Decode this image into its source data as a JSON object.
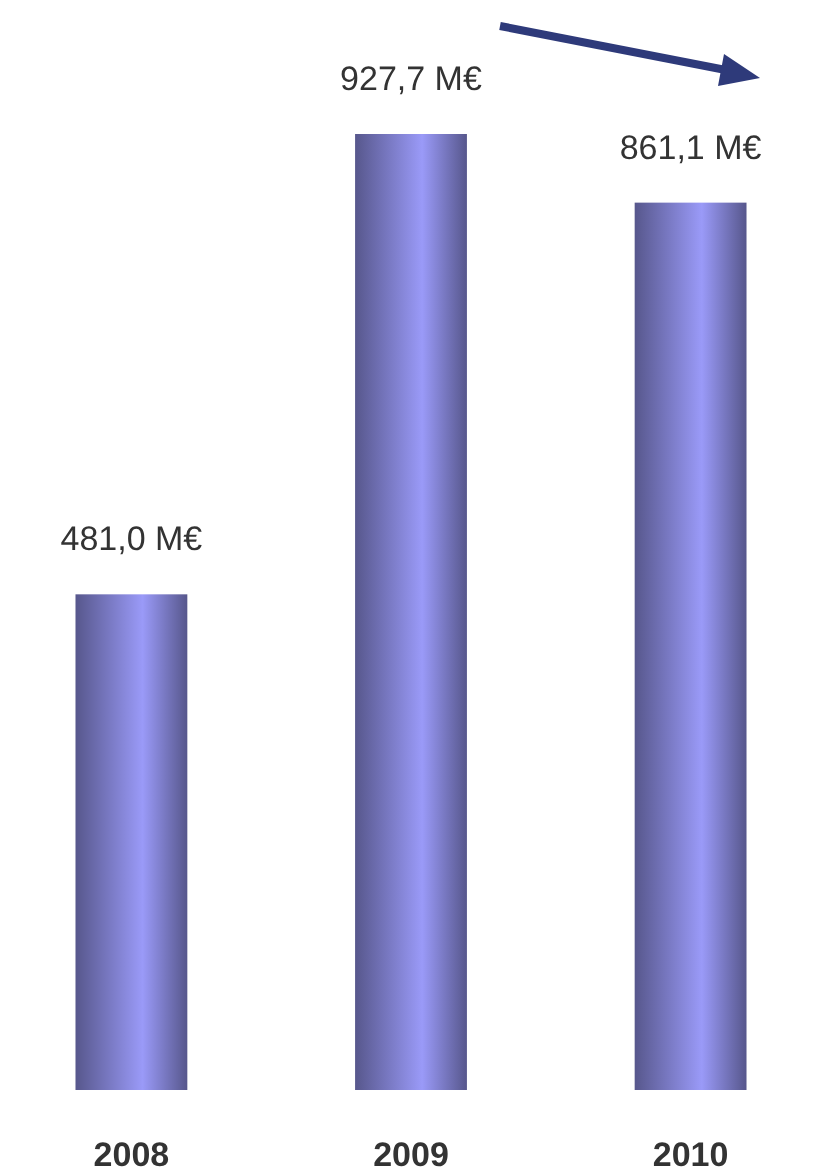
{
  "chart_data": {
    "type": "bar",
    "categories": [
      "2008",
      "2009",
      "2010"
    ],
    "values": [
      481.0,
      927.7,
      861.1
    ],
    "value_labels": [
      "481,0 M€",
      "927,7 M€",
      "861,1 M€"
    ],
    "color": "#9a9af8"
  }
}
